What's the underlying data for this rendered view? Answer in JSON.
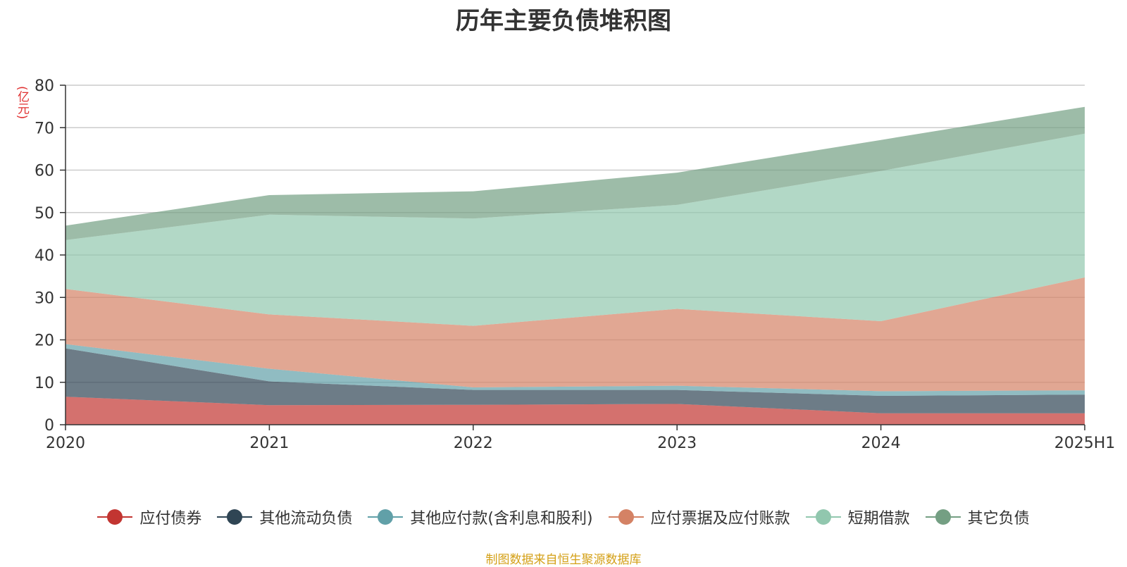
{
  "chart_data": {
    "type": "area",
    "stacked": true,
    "title": "历年主要负债堆积图",
    "ylabel": "(亿元)",
    "x": [
      "2020",
      "2021",
      "2022",
      "2023",
      "2024",
      "2025H1"
    ],
    "ylim": [
      0,
      80
    ],
    "yticks": [
      0,
      10,
      20,
      30,
      40,
      50,
      60,
      70,
      80
    ],
    "grid": true,
    "legend_position": "bottom",
    "series": [
      {
        "name": "应付债券",
        "color": "#c23531",
        "values": [
          6.6,
          4.6,
          4.7,
          4.9,
          2.7,
          2.7
        ]
      },
      {
        "name": "其他流动负债",
        "color": "#2f4554",
        "values": [
          11.4,
          5.6,
          3.5,
          3.3,
          4.1,
          4.4
        ]
      },
      {
        "name": "其他应付款(含利息和股利)",
        "color": "#61a0a8",
        "values": [
          1.0,
          3.0,
          0.6,
          1.0,
          1.1,
          1.0
        ]
      },
      {
        "name": "应付票据及应付账款",
        "color": "#d48265",
        "values": [
          13.0,
          12.8,
          14.5,
          18.1,
          16.5,
          26.6
        ]
      },
      {
        "name": "短期借款",
        "color": "#91c7ae",
        "values": [
          11.5,
          23.5,
          25.3,
          24.5,
          35.4,
          33.9
        ]
      },
      {
        "name": "其它负债",
        "color": "#749f83",
        "values": [
          3.4,
          4.6,
          6.4,
          7.6,
          7.3,
          6.3
        ]
      }
    ]
  },
  "source_note": "制图数据来自恒生聚源数据库"
}
